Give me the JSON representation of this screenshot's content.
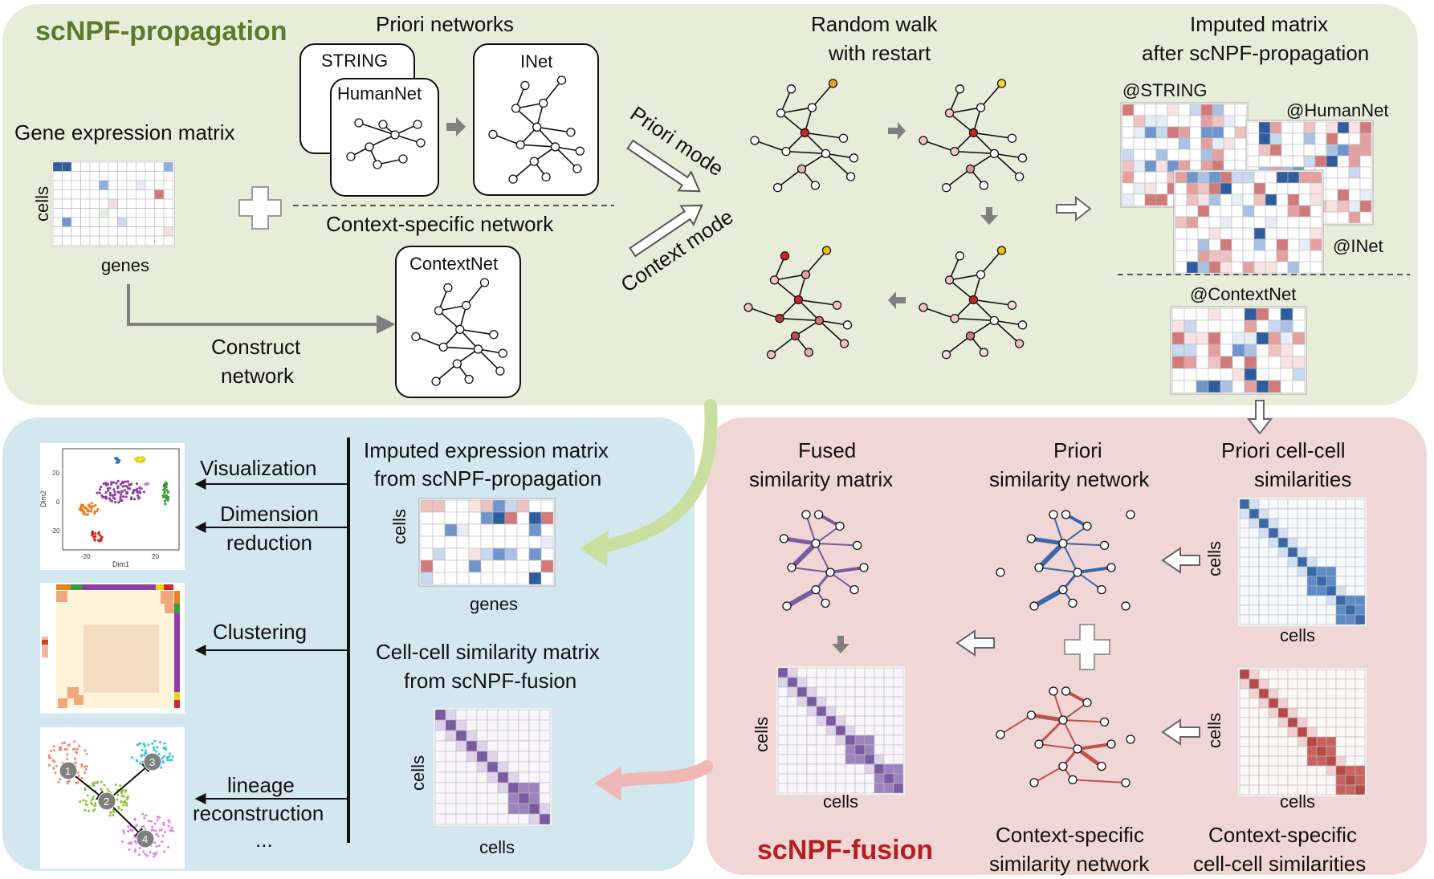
{
  "colors": {
    "propagation_bg": "#e8edd9",
    "analysis_bg": "#d3e7ef",
    "fusion_bg": "#f0d6d5",
    "propagation_title": "#5a7a2c",
    "fusion_title": "#b51f1f",
    "blue": "#3b68a8",
    "red": "#c0504d",
    "purple": "#7a5aa0",
    "arrow_gray": "#808080"
  },
  "propagation": {
    "title": "scNPF-propagation",
    "gene_expression_label": "Gene expression matrix",
    "cells_label": "cells",
    "genes_label": "genes",
    "priori_networks_label": "Priori networks",
    "network_string": "STRING",
    "network_humannet": "HumanNet",
    "network_inet": "INet",
    "context_specific_network_label": "Context-specific network",
    "network_contextnet": "ContextNet",
    "construct_line1": "Construct",
    "construct_line2": "network",
    "priori_mode": "Priori mode",
    "context_mode": "Context mode",
    "rwr_line1": "Random walk",
    "rwr_line2": "with restart",
    "imputed_line1": "Imputed matrix",
    "imputed_line2": "after scNPF-propagation",
    "at_string": "@STRING",
    "at_humannet": "@HumanNet",
    "at_inet": "@INet",
    "at_contextnet": "@ContextNet"
  },
  "analysis": {
    "imputed_line1": "Imputed expression matrix",
    "imputed_line2": "from scNPF-propagation",
    "cells_label": "cells",
    "genes_label": "genes",
    "ccsim_line1": "Cell-cell similarity matrix",
    "ccsim_line2": "from scNPF-fusion",
    "cells_label2": "cells",
    "cells_label3": "cells",
    "visualization": "Visualization",
    "dimred_line1": "Dimension",
    "dimred_line2": "reduction",
    "clustering": "Clustering",
    "lineage_line1": "lineage",
    "lineage_line2": "reconstruction",
    "ellipsis": "...",
    "dim1": "Dim1",
    "dim2": "Dim2",
    "tick_20": "20",
    "tick_0": "0",
    "tick_neg20": "-20",
    "node1": "1",
    "node2": "2",
    "node3": "3",
    "node4": "4"
  },
  "fusion": {
    "title": "scNPF-fusion",
    "fused_line1": "Fused",
    "fused_line2": "similarity matrix",
    "priori_net_line1": "Priori",
    "priori_net_line2": "similarity network",
    "priori_cc_line1": "Priori cell-cell",
    "priori_cc_line2": "similarities",
    "context_net_line1": "Context-specific",
    "context_net_line2": "similarity network",
    "context_cc_line1": "Context-specific",
    "context_cc_line2": "cell-cell similarities",
    "cells_a": "cells",
    "cells_b": "cells",
    "cells_c": "cells",
    "cells_d": "cells",
    "cells_e": "cells",
    "cells_f": "cells"
  }
}
